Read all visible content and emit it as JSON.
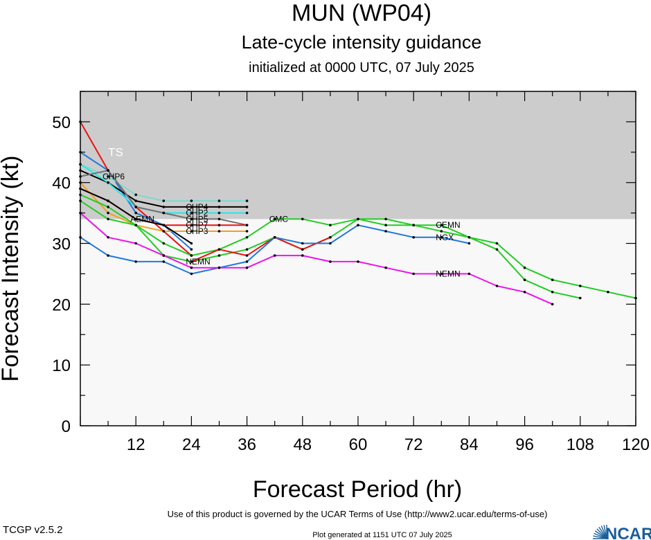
{
  "colors": {
    "ts_band": "#cccccc",
    "plot_bg": "#f8f8f8",
    "red": "#ee1111",
    "blue": "#1f77dd",
    "cyan": "#22e8e8",
    "green": "#22cc22",
    "magenta": "#ee11ee",
    "orange": "#f0a020",
    "black": "#000000",
    "gray": "#707070",
    "teal": "#7ed8d0",
    "ncar_blue": "#1a5e9a"
  },
  "footer": {
    "version": "TCGP v2.5.2",
    "terms": "Use of this product is governed by the UCAR Terms of Use (http://www2.ucar.edu/terms-of-use)",
    "generated": "Plot generated at 1151 UTC   07 July 2025",
    "logo_text": "NCAR"
  },
  "chart_data": {
    "type": "line",
    "title": "MUN (WP04)",
    "subtitle": "Late-cycle intensity guidance",
    "subtitle2": "initialized at 0000 UTC, 07 July 2025",
    "xlabel": "Forecast Period (hr)",
    "ylabel": "Forecast Intensity (kt)",
    "xlim": [
      0,
      120
    ],
    "ylim": [
      0,
      55
    ],
    "xticks": [
      12,
      24,
      36,
      48,
      60,
      72,
      84,
      96,
      108,
      120
    ],
    "yticks": [
      0,
      10,
      20,
      30,
      40,
      50
    ],
    "band": {
      "label": "TS",
      "from": 34,
      "to": 55
    },
    "grid": false,
    "series": [
      {
        "name": "",
        "color": "red",
        "x": [
          0,
          6,
          12,
          18,
          24
        ],
        "y": [
          50,
          42,
          36,
          32,
          28
        ]
      },
      {
        "name": "",
        "color": "blue",
        "x": [
          0,
          6,
          12,
          18,
          24
        ],
        "y": [
          45,
          42,
          35,
          33,
          29
        ]
      },
      {
        "name": "CHP6",
        "color": "teal",
        "x": [
          0,
          6,
          12,
          18,
          24,
          30,
          36
        ],
        "y": [
          43,
          41,
          38,
          37,
          37,
          37,
          37
        ],
        "label_at": 1
      },
      {
        "name": "CHP4",
        "color": "black",
        "x": [
          0,
          6,
          12,
          18,
          24,
          30,
          36
        ],
        "y": [
          42,
          40,
          37,
          36,
          36,
          36,
          36
        ],
        "label_at": 4
      },
      {
        "name": "CHP2",
        "color": "cyan",
        "x": [
          0,
          6,
          12,
          18,
          24,
          30,
          36
        ],
        "y": [
          43,
          40,
          36,
          35,
          35,
          35,
          35
        ],
        "label_at": 4
      },
      {
        "name": "CHP5",
        "color": "gray",
        "x": [
          0,
          6,
          12,
          18,
          24,
          30,
          36
        ],
        "y": [
          41,
          42,
          36,
          35,
          34,
          34,
          33
        ],
        "label_at": 4
      },
      {
        "name": "CHP7",
        "color": "red",
        "x": [
          0,
          6,
          12,
          18,
          24,
          30,
          36
        ],
        "y": [
          39,
          37,
          34,
          33,
          33,
          33,
          33
        ],
        "label_at": 4
      },
      {
        "name": "CHP3",
        "color": "orange",
        "x": [
          0,
          6,
          12,
          18,
          24,
          30,
          36
        ],
        "y": [
          40,
          35,
          33,
          32,
          32,
          32,
          32
        ],
        "label_at": 4
      },
      {
        "name": "AEMN",
        "color": "black",
        "x": [
          0,
          6,
          12,
          18,
          24
        ],
        "y": [
          39,
          37,
          34,
          33,
          30
        ],
        "label_at": 2
      },
      {
        "name": "CEMN",
        "color": "green",
        "x": [
          0,
          6,
          12,
          18,
          24,
          30,
          36,
          42,
          48,
          54,
          60,
          66,
          72,
          78,
          84,
          90,
          96,
          102,
          108
        ],
        "y": [
          38,
          36,
          33,
          28,
          27,
          28,
          29,
          31,
          29,
          31,
          34,
          34,
          33,
          33,
          31,
          29,
          24,
          22,
          21
        ],
        "label_at": 13
      },
      {
        "name": "CMC",
        "color": "green",
        "x": [
          0,
          6,
          12,
          18,
          24,
          30,
          36,
          42,
          48,
          54,
          60,
          66,
          72,
          78,
          84,
          90,
          96,
          102,
          108,
          114,
          120
        ],
        "y": [
          37,
          34,
          33,
          30,
          28,
          29,
          31,
          34,
          34,
          33,
          34,
          33,
          33,
          32,
          31,
          30,
          26,
          24,
          23,
          22,
          21
        ],
        "label_at": 7
      },
      {
        "name": "NEMN",
        "color": "red",
        "x": [
          24,
          30,
          36,
          42,
          48,
          54
        ],
        "y": [
          27,
          29,
          28,
          31,
          29,
          31
        ],
        "label_at": 0
      },
      {
        "name": "NGX",
        "color": "blue",
        "x": [
          0,
          6,
          12,
          18,
          24,
          30,
          36,
          42,
          48,
          54,
          60,
          66,
          72,
          78,
          84
        ],
        "y": [
          31,
          28,
          27,
          27,
          25,
          26,
          27,
          31,
          30,
          30,
          33,
          32,
          31,
          31,
          30
        ],
        "label_at": 13
      },
      {
        "name": "NEMN",
        "color": "magenta",
        "x": [
          0,
          6,
          12,
          18,
          24,
          30,
          36,
          42,
          48,
          54,
          60,
          66,
          72,
          78,
          84,
          90,
          96,
          102
        ],
        "y": [
          35,
          31,
          30,
          28,
          26,
          26,
          26,
          28,
          28,
          27,
          27,
          26,
          25,
          25,
          25,
          23,
          22,
          20
        ],
        "label_at": 13
      }
    ]
  }
}
